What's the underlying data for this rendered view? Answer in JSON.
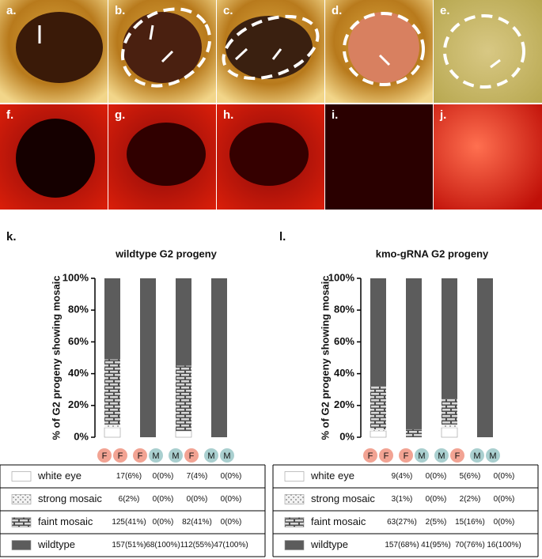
{
  "panels": [
    "a.",
    "b.",
    "c.",
    "d.",
    "e.",
    "f.",
    "g.",
    "h.",
    "i.",
    "j."
  ],
  "sex_colors": {
    "F": "#f2a393",
    "M": "#a9cfcf"
  },
  "chart_data": [
    {
      "type": "bar",
      "stacked": true,
      "panel": "k.",
      "title": "wildtype G2 progeny",
      "ylabel": "% of G2 progeny showing mosaic",
      "categories": [
        [
          "F",
          "F"
        ],
        [
          "F",
          "M"
        ],
        [
          "M",
          "F"
        ],
        [
          "M",
          "M"
        ]
      ],
      "ylim": [
        0,
        100
      ],
      "yticks": [
        {
          "value": 0,
          "label": "0%"
        },
        {
          "value": 20,
          "label": "20%"
        },
        {
          "value": 40,
          "label": "40%"
        },
        {
          "value": 60,
          "label": "60%"
        },
        {
          "value": 80,
          "label": "80%"
        },
        {
          "value": 100,
          "label": "100%"
        }
      ],
      "series": [
        {
          "name": "white eye",
          "color": "#ffffff",
          "pattern": "none",
          "values": [
            6,
            0,
            4,
            0
          ],
          "value_labels": [
            "17(6%)",
            "0(0%)",
            "7(4%)",
            "0(0%)"
          ]
        },
        {
          "name": "strong mosaic",
          "color": "#f2f2f2",
          "pattern": "dots",
          "values": [
            2,
            0,
            0,
            0
          ],
          "value_labels": [
            "6(2%)",
            "0(0%)",
            "0(0%)",
            "0(0%)"
          ]
        },
        {
          "name": "faint mosaic",
          "color": "#4d4d4d",
          "pattern": "brick",
          "values": [
            41,
            0,
            41,
            0
          ],
          "value_labels": [
            "125(41%)",
            "0(0%)",
            "82(41%)",
            "0(0%)"
          ]
        },
        {
          "name": "wildtype",
          "color": "#5c5c5c",
          "pattern": "none",
          "values": [
            51,
            100,
            55,
            100
          ],
          "value_labels": [
            "157(51%)",
            "68(100%)",
            "112(55%)",
            "47(100%)"
          ]
        }
      ]
    },
    {
      "type": "bar",
      "stacked": true,
      "panel": "l.",
      "title": "kmo-gRNA G2 progeny",
      "ylabel": "% of G2 progeny showing mosaic",
      "categories": [
        [
          "F",
          "F"
        ],
        [
          "F",
          "M"
        ],
        [
          "M",
          "F"
        ],
        [
          "M",
          "M"
        ]
      ],
      "ylim": [
        0,
        100
      ],
      "yticks": [
        {
          "value": 0,
          "label": "0%"
        },
        {
          "value": 20,
          "label": "20%"
        },
        {
          "value": 40,
          "label": "40%"
        },
        {
          "value": 60,
          "label": "60%"
        },
        {
          "value": 80,
          "label": "80%"
        },
        {
          "value": 100,
          "label": "100%"
        }
      ],
      "series": [
        {
          "name": "white eye",
          "color": "#ffffff",
          "pattern": "none",
          "values": [
            4,
            0,
            6,
            0
          ],
          "value_labels": [
            "9(4%)",
            "0(0%)",
            "5(6%)",
            "0(0%)"
          ]
        },
        {
          "name": "strong mosaic",
          "color": "#f2f2f2",
          "pattern": "dots",
          "values": [
            1,
            0,
            2,
            0
          ],
          "value_labels": [
            "3(1%)",
            "0(0%)",
            "2(2%)",
            "0(0%)"
          ]
        },
        {
          "name": "faint mosaic",
          "color": "#4d4d4d",
          "pattern": "brick",
          "values": [
            27,
            5,
            16,
            0
          ],
          "value_labels": [
            "63(27%)",
            "2(5%)",
            "15(16%)",
            "0(0%)"
          ]
        },
        {
          "name": "wildtype",
          "color": "#5c5c5c",
          "pattern": "none",
          "values": [
            68,
            95,
            76,
            100
          ],
          "value_labels": [
            "157(68%)",
            "41(95%)",
            "70(76%)",
            "16(100%)"
          ]
        }
      ]
    }
  ]
}
